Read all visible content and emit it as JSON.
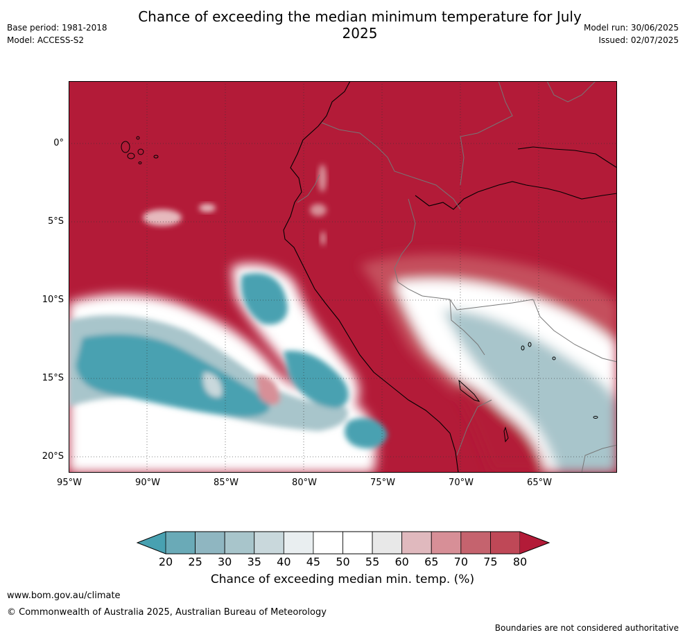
{
  "header": {
    "title": "Chance of exceeding the median minimum temperature for July 2025",
    "base_period": "Base period: 1981-2018",
    "model": "Model: ACCESS-S2",
    "model_run": "Model run: 30/06/2025",
    "issued": "Issued: 02/07/2025"
  },
  "map": {
    "lon_ticks": [
      "95°W",
      "90°W",
      "85°W",
      "80°W",
      "75°W",
      "70°W",
      "65°W"
    ],
    "lat_ticks": [
      "0°",
      "5°S",
      "10°S",
      "15°S",
      "20°S"
    ],
    "colors": {
      "very_high": "#b31b38",
      "high": "#c5505d",
      "mid_high": "#d78f97",
      "light_pink": "#e6b9bd",
      "near_white": "#ffffff",
      "light_blue": "#c9d8dc",
      "mid_blue": "#a8c5cb",
      "blue": "#6aaab7",
      "deep_blue": "#48a1b1"
    }
  },
  "colorbar": {
    "labels": [
      "20",
      "25",
      "30",
      "35",
      "40",
      "45",
      "50",
      "55",
      "60",
      "65",
      "70",
      "75",
      "80"
    ],
    "colors": [
      "#48a1b1",
      "#6aaab7",
      "#8fb6c1",
      "#a8c5cb",
      "#c9d8dc",
      "#e9eef0",
      "#ffffff",
      "#ffffff",
      "#e8e8e8",
      "#e0b9be",
      "#d78f97",
      "#c5636e",
      "#bf4857",
      "#b31b38"
    ],
    "title": "Chance of exceeding median min. temp. (%)"
  },
  "footer": {
    "website": "www.bom.gov.au/climate",
    "copyright": "© Commonwealth of Australia 2025, Australian Bureau of Meteorology",
    "disclaimer": "Boundaries are not considered authoritative"
  }
}
